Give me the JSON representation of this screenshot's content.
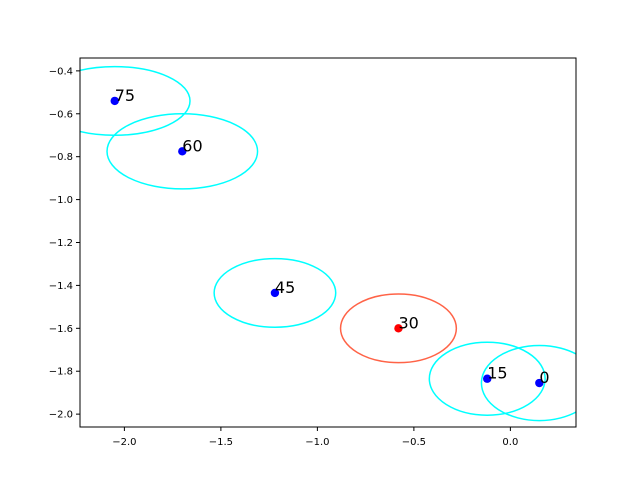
{
  "chart_data": {
    "type": "scatter",
    "title": "",
    "xlabel": "",
    "ylabel": "",
    "xlim": [
      -2.23,
      0.34
    ],
    "ylim": [
      -2.06,
      -0.34
    ],
    "xticks": [
      -2.0,
      -1.5,
      -1.0,
      -0.5,
      0.0
    ],
    "xtick_labels": [
      "−2.0",
      "−1.5",
      "−1.0",
      "−0.5",
      "0.0"
    ],
    "yticks": [
      -2.0,
      -1.8,
      -1.6,
      -1.4,
      -1.2,
      -1.0,
      -0.8,
      -0.6,
      -0.4
    ],
    "ytick_labels": [
      "−2.0",
      "−1.8",
      "−1.6",
      "−1.4",
      "−1.2",
      "−1.0",
      "−0.8",
      "−0.6",
      "−0.4"
    ],
    "grid": false,
    "points": [
      {
        "label": "0",
        "x": 0.15,
        "y": -1.855,
        "rx": 0.3,
        "ry": 0.175,
        "color": "#0000ff",
        "ellipse_color": "#00ffff"
      },
      {
        "label": "15",
        "x": -0.12,
        "y": -1.835,
        "rx": 0.3,
        "ry": 0.17,
        "color": "#0000ff",
        "ellipse_color": "#00ffff"
      },
      {
        "label": "30",
        "x": -0.58,
        "y": -1.6,
        "rx": 0.3,
        "ry": 0.16,
        "color": "#ff0000",
        "ellipse_color": "#ff6347"
      },
      {
        "label": "45",
        "x": -1.22,
        "y": -1.435,
        "rx": 0.315,
        "ry": 0.16,
        "color": "#0000ff",
        "ellipse_color": "#00ffff"
      },
      {
        "label": "60",
        "x": -1.7,
        "y": -0.775,
        "rx": 0.39,
        "ry": 0.175,
        "color": "#0000ff",
        "ellipse_color": "#00ffff"
      },
      {
        "label": "75",
        "x": -2.05,
        "y": -0.54,
        "rx": 0.39,
        "ry": 0.16,
        "color": "#0000ff",
        "ellipse_color": "#00ffff"
      }
    ]
  }
}
